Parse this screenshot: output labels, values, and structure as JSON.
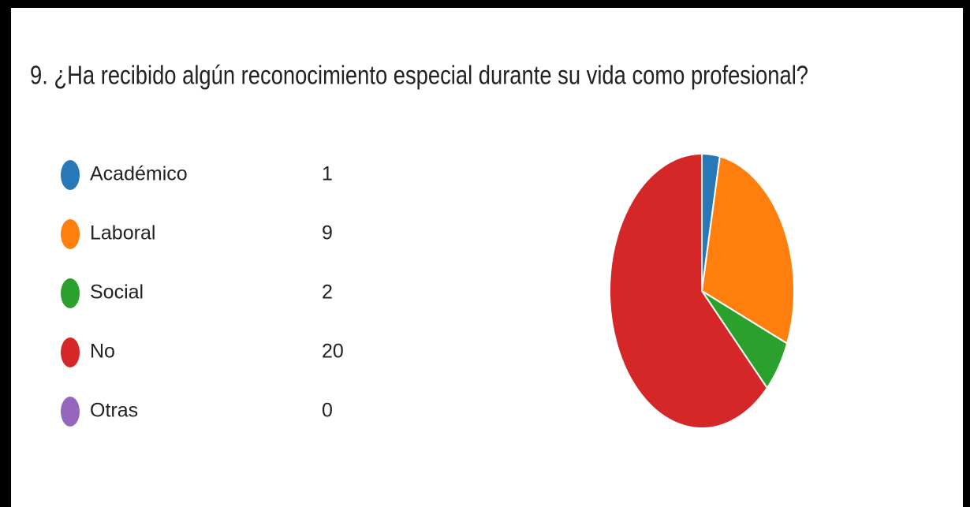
{
  "chart_data": {
    "type": "pie",
    "title": "9.  ¿Ha recibido algún reconocimiento especial durante su vida como profesional?",
    "categories": [
      "Académico",
      "Laboral",
      "Social",
      "No",
      "Otras"
    ],
    "values": [
      1,
      9,
      2,
      20,
      0
    ],
    "colors": [
      "#2878b8",
      "#ff7f0e",
      "#2ca02c",
      "#d62728",
      "#9467bd"
    ],
    "legend": "left"
  }
}
